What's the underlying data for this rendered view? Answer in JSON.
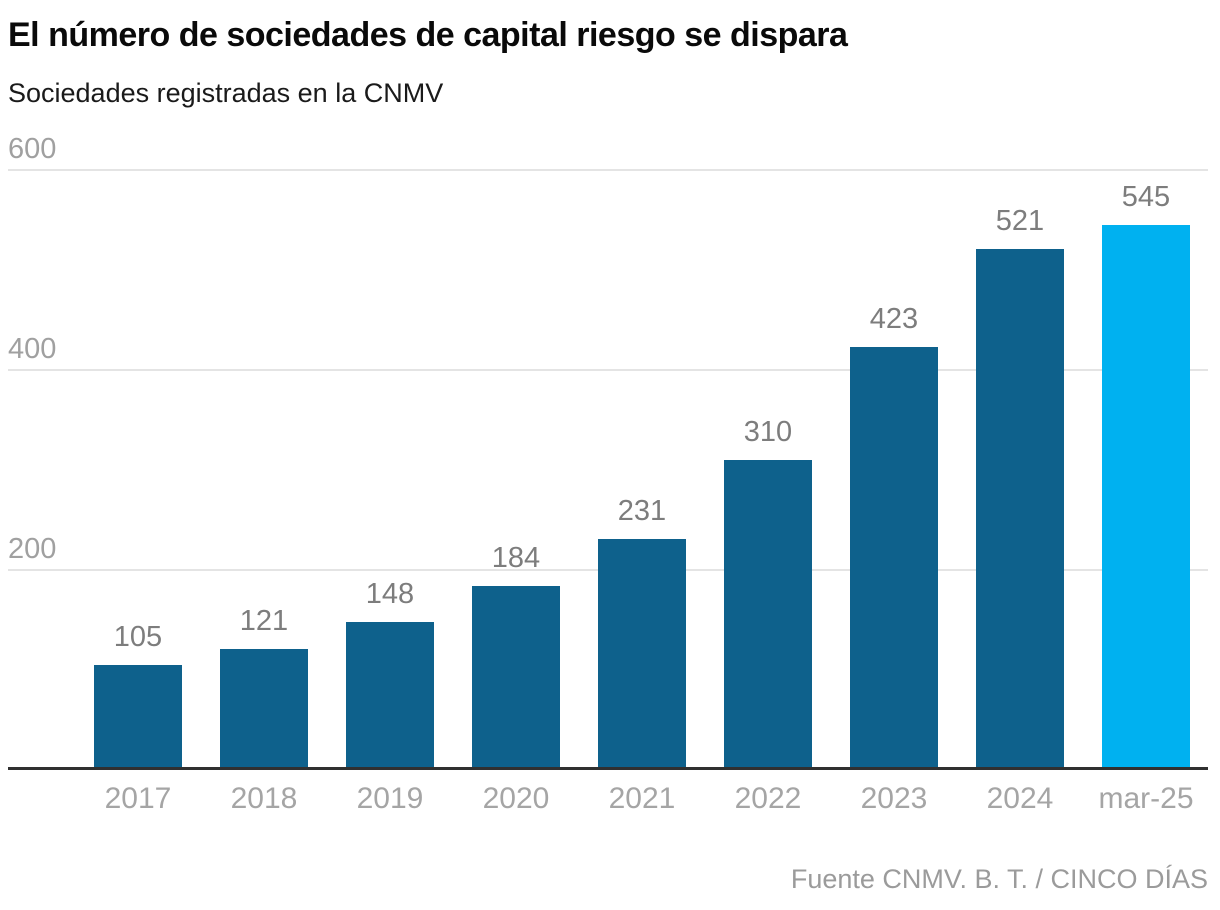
{
  "header": {
    "title": "El número de sociedades de capital riesgo se dispara",
    "subtitle": "Sociedades registradas en la CNMV"
  },
  "footer": {
    "source": "Fuente CNMV. B. T. / CINCO DÍAS"
  },
  "colors": {
    "bar": "#0e618c",
    "bar_highlight": "#00b1f0",
    "gridline": "#e4e4e4",
    "axis_line": "#303030",
    "value_label": "#7d7d7d",
    "tick_label": "#a5a5a5"
  },
  "chart_data": {
    "type": "bar",
    "title": "El número de sociedades de capital riesgo se dispara",
    "subtitle": "Sociedades registradas en la CNMV",
    "categories": [
      "2017",
      "2018",
      "2019",
      "2020",
      "2021",
      "2022",
      "2023",
      "2024",
      "mar-25"
    ],
    "values": [
      105,
      121,
      148,
      184,
      231,
      310,
      423,
      521,
      545
    ],
    "highlight_index": 8,
    "value_labels": true,
    "xlabel": "",
    "ylabel": "",
    "yticks": [
      200,
      400,
      600
    ],
    "ylim": [
      0,
      600
    ],
    "grid": true,
    "legend": "none",
    "source": "Fuente CNMV. B. T. / CINCO DÍAS"
  }
}
